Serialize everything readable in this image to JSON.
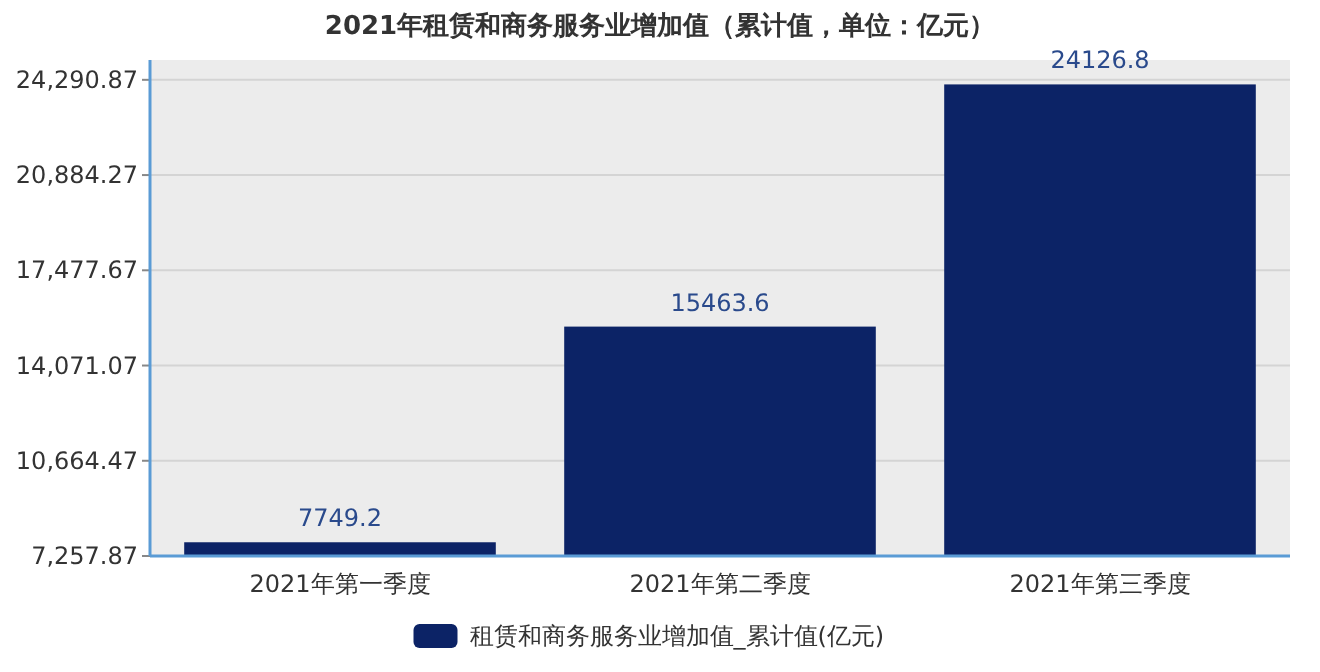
{
  "chart_data": {
    "type": "bar",
    "title": "2021年租赁和商务服务业增加值（累计值，单位：亿元）",
    "categories": [
      "2021年第一季度",
      "2021年第二季度",
      "2021年第三季度"
    ],
    "series": [
      {
        "name": "租赁和商务服务业增加值_累计值(亿元)",
        "color": "#0c2366",
        "values": [
          7749.2,
          15463.6,
          24126.8
        ]
      }
    ],
    "ylim": [
      7257.87,
      25000
    ],
    "yticks": [
      {
        "value": 7257.87,
        "label": "7,257.87"
      },
      {
        "value": 10664.47,
        "label": "10,664.47"
      },
      {
        "value": 14071.07,
        "label": "14,071.07"
      },
      {
        "value": 17477.67,
        "label": "17,477.67"
      },
      {
        "value": 20884.27,
        "label": "20,884.27"
      },
      {
        "value": 24290.87,
        "label": "24,290.87"
      }
    ],
    "grid": "y",
    "legend": "bottom",
    "data_labels": true
  }
}
